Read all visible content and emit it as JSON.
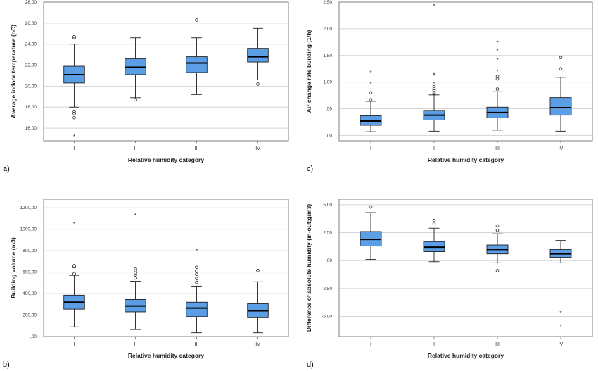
{
  "figure": {
    "box_fill": "#5b9ee6",
    "box_stroke": "#1f1f1f",
    "grid_color": "#d4d4d4",
    "axis_color": "#7f7f7f"
  },
  "chart_data": [
    {
      "type": "boxplot",
      "panel_label": "a)",
      "xlabel": "Relative humidity category",
      "ylabel": "Average indoor temperature (oC)",
      "categories": [
        "I",
        "II",
        "III",
        "IV"
      ],
      "ylim": [
        14.8,
        28.0
      ],
      "yticks": [
        16,
        18,
        20,
        22,
        24,
        26,
        28
      ],
      "ytick_labels": [
        "16,00",
        "18,00",
        "20,00",
        "22,00",
        "24,00",
        "26,00",
        "28,00"
      ],
      "grid": true,
      "boxes": [
        {
          "category": "I",
          "whisker_low": 18.0,
          "q1": 20.3,
          "median": 21.1,
          "q3": 21.9,
          "whisker_high": 24.0,
          "outliers": [
            24.6,
            24.7,
            17.6,
            17.4,
            17.0
          ],
          "extremes": [
            15.2
          ]
        },
        {
          "category": "II",
          "whisker_low": 18.9,
          "q1": 21.1,
          "median": 21.8,
          "q3": 22.6,
          "whisker_high": 24.6,
          "outliers": [
            18.7
          ],
          "extremes": []
        },
        {
          "category": "III",
          "whisker_low": 19.2,
          "q1": 21.3,
          "median": 22.2,
          "q3": 22.8,
          "whisker_high": 24.6,
          "outliers": [
            26.3
          ],
          "extremes": []
        },
        {
          "category": "IV",
          "whisker_low": 20.6,
          "q1": 22.3,
          "median": 22.8,
          "q3": 23.6,
          "whisker_high": 25.5,
          "outliers": [
            20.2
          ],
          "extremes": []
        }
      ]
    },
    {
      "type": "boxplot",
      "panel_label": "b)",
      "xlabel": "Relative humidity category",
      "ylabel": "Building volume (m3)",
      "categories": [
        "I",
        "II",
        "III",
        "IV"
      ],
      "ylim": [
        0,
        1280
      ],
      "yticks": [
        0,
        200,
        400,
        600,
        800,
        1000,
        1200
      ],
      "ytick_labels": [
        ",00",
        "200,00",
        "400,00",
        "600,00",
        "800,00",
        "1000,00",
        "1200,00"
      ],
      "grid": true,
      "boxes": [
        {
          "category": "I",
          "whisker_low": 90,
          "q1": 255,
          "median": 320,
          "q3": 385,
          "whisker_high": 570,
          "outliers": [
            585,
            650,
            660
          ],
          "extremes": [
            1050
          ]
        },
        {
          "category": "II",
          "whisker_low": 65,
          "q1": 230,
          "median": 285,
          "q3": 345,
          "whisker_high": 515,
          "outliers": [
            545,
            575,
            595,
            615,
            635
          ],
          "extremes": [
            1130
          ]
        },
        {
          "category": "III",
          "whisker_low": 35,
          "q1": 185,
          "median": 265,
          "q3": 320,
          "whisker_high": 470,
          "outliers": [
            505,
            540,
            580,
            610,
            645
          ],
          "extremes": [
            800
          ]
        },
        {
          "category": "IV",
          "whisker_low": 35,
          "q1": 175,
          "median": 240,
          "q3": 305,
          "whisker_high": 510,
          "outliers": [
            615
          ],
          "extremes": []
        }
      ]
    },
    {
      "type": "boxplot",
      "panel_label": "c)",
      "xlabel": "Relative humidity category",
      "ylabel": "Air change rate building (1/h)",
      "categories": [
        "I",
        "II",
        "III",
        "IV"
      ],
      "ylim": [
        -0.1,
        2.5
      ],
      "yticks": [
        0,
        0.5,
        1.0,
        1.5,
        2.0,
        2.5
      ],
      "ytick_labels": [
        ",00",
        ",50",
        "1,00",
        "1,50",
        "2,00",
        "2,50"
      ],
      "grid": true,
      "boxes": [
        {
          "category": "I",
          "whisker_low": 0.07,
          "q1": 0.19,
          "median": 0.27,
          "q3": 0.37,
          "whisker_high": 0.64,
          "outliers": [
            0.67,
            0.8
          ],
          "extremes": [
            0.97,
            1.18
          ]
        },
        {
          "category": "II",
          "whisker_low": 0.08,
          "q1": 0.29,
          "median": 0.38,
          "q3": 0.47,
          "whisker_high": 0.76,
          "outliers": [
            0.79,
            0.82,
            0.85,
            0.88,
            0.92,
            0.96
          ],
          "extremes": [
            1.12,
            1.15,
            2.43
          ]
        },
        {
          "category": "III",
          "whisker_low": 0.1,
          "q1": 0.33,
          "median": 0.43,
          "q3": 0.53,
          "whisker_high": 0.82,
          "outliers": [
            0.87,
            1.06,
            1.11
          ],
          "extremes": [
            1.2,
            1.42,
            1.59,
            1.74
          ]
        },
        {
          "category": "IV",
          "whisker_low": 0.08,
          "q1": 0.38,
          "median": 0.52,
          "q3": 0.71,
          "whisker_high": 1.09,
          "outliers": [
            1.25,
            1.46
          ],
          "extremes": []
        }
      ]
    },
    {
      "type": "boxplot",
      "panel_label": "d)",
      "xlabel": "Relative humidity category",
      "ylabel": "Difference of absolute humidity (in-out;g/m3)",
      "categories": [
        "I",
        "II",
        "III",
        "IV"
      ],
      "ylim": [
        -6.8,
        5.5
      ],
      "yticks": [
        -5.0,
        -2.5,
        0,
        2.5,
        5.0
      ],
      "ytick_labels": [
        "-5,00",
        "-2,50",
        ",00",
        "2,50",
        "5,00"
      ],
      "grid": true,
      "boxes": [
        {
          "category": "I",
          "whisker_low": 0.1,
          "q1": 1.3,
          "median": 1.9,
          "q3": 2.6,
          "whisker_high": 4.3,
          "outliers": [
            4.8
          ],
          "extremes": []
        },
        {
          "category": "II",
          "whisker_low": -0.1,
          "q1": 0.8,
          "median": 1.2,
          "q3": 1.7,
          "whisker_high": 2.9,
          "outliers": [
            3.3,
            3.6
          ],
          "extremes": []
        },
        {
          "category": "III",
          "whisker_low": -0.2,
          "q1": 0.6,
          "median": 1.0,
          "q3": 1.4,
          "whisker_high": 2.4,
          "outliers": [
            2.7,
            3.1,
            -0.9
          ],
          "extremes": []
        },
        {
          "category": "IV",
          "whisker_low": -0.2,
          "q1": 0.3,
          "median": 0.6,
          "q3": 1.0,
          "whisker_high": 1.8,
          "outliers": [],
          "extremes": [
            -4.7,
            -5.9
          ]
        }
      ]
    }
  ]
}
